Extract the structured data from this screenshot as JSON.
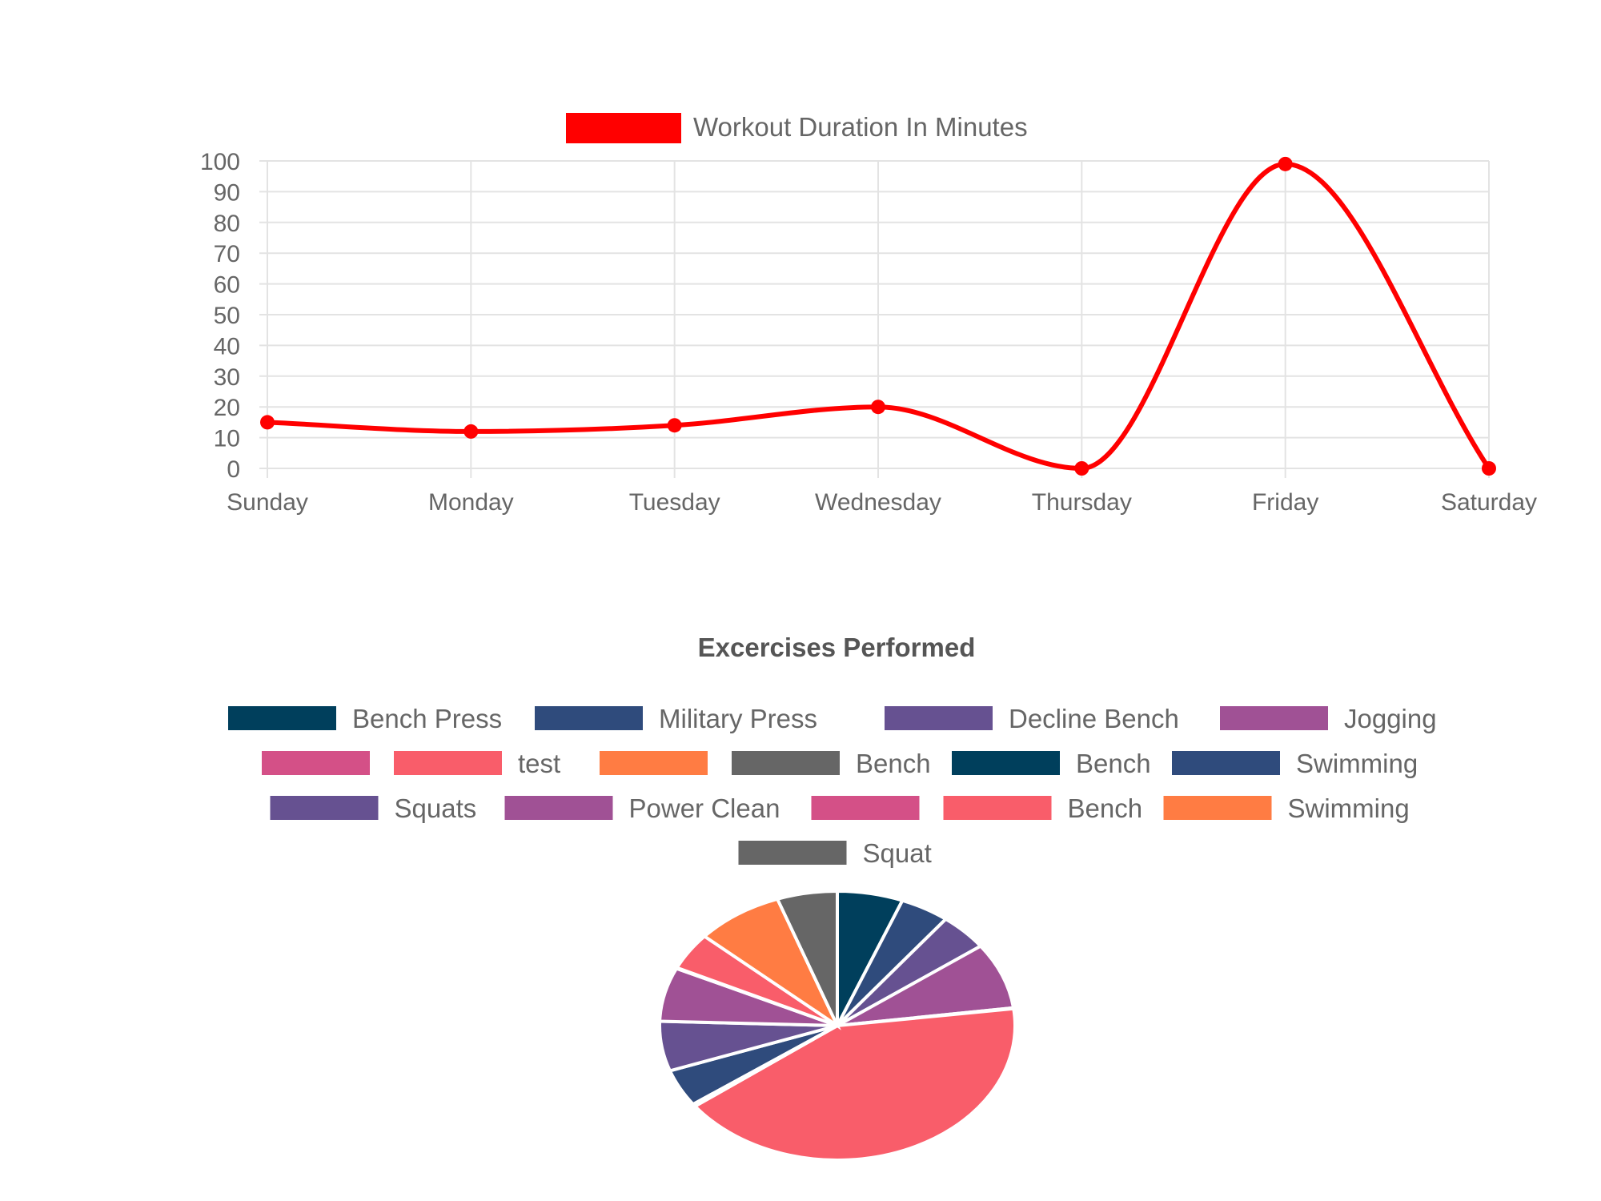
{
  "chart_data": [
    {
      "type": "line",
      "legend": {
        "position": "top",
        "label": "Workout Duration In Minutes",
        "color": "#ff0000"
      },
      "categories": [
        "Sunday",
        "Monday",
        "Tuesday",
        "Wednesday",
        "Thursday",
        "Friday",
        "Saturday"
      ],
      "series": [
        {
          "name": "Workout Duration In Minutes",
          "values": [
            15,
            12,
            14,
            20,
            0,
            99,
            0
          ],
          "color": "#ff0000"
        }
      ],
      "ylim": [
        0,
        100
      ],
      "yticks": [
        "100",
        "90",
        "80",
        "70",
        "60",
        "50",
        "40",
        "30",
        "20",
        "10",
        "0"
      ],
      "grid": true,
      "smooth": true
    },
    {
      "type": "pie",
      "title": "Excercises Performed",
      "legend_position": "top",
      "slices": [
        {
          "label": "Bench Press",
          "value": 6,
          "color": "#003f5c"
        },
        {
          "label": "Military Press",
          "value": 4.5,
          "color": "#2f4b7c"
        },
        {
          "label": "Decline Bench",
          "value": 4.5,
          "color": "#665191"
        },
        {
          "label": "Jogging",
          "value": 8,
          "color": "#a05195"
        },
        {
          "label": "",
          "value": 0.1,
          "color": "#d45087"
        },
        {
          "label": "test",
          "value": 42,
          "color": "#f95d6a"
        },
        {
          "label": "",
          "value": 0.1,
          "color": "#ff7c43"
        },
        {
          "label": "Bench",
          "value": 0.1,
          "color": "#666666"
        },
        {
          "label": "Bench",
          "value": 0.1,
          "color": "#003f5c"
        },
        {
          "label": "Swimming",
          "value": 4.5,
          "color": "#2f4b7c"
        },
        {
          "label": "Squats",
          "value": 6,
          "color": "#665191"
        },
        {
          "label": "Power Clean",
          "value": 6.5,
          "color": "#a05195"
        },
        {
          "label": "",
          "value": 0.1,
          "color": "#d45087"
        },
        {
          "label": "Bench",
          "value": 4.5,
          "color": "#f95d6a"
        },
        {
          "label": "Swimming",
          "value": 8,
          "color": "#ff7c43"
        },
        {
          "label": "Squat",
          "value": 5.5,
          "color": "#666666"
        }
      ]
    }
  ]
}
